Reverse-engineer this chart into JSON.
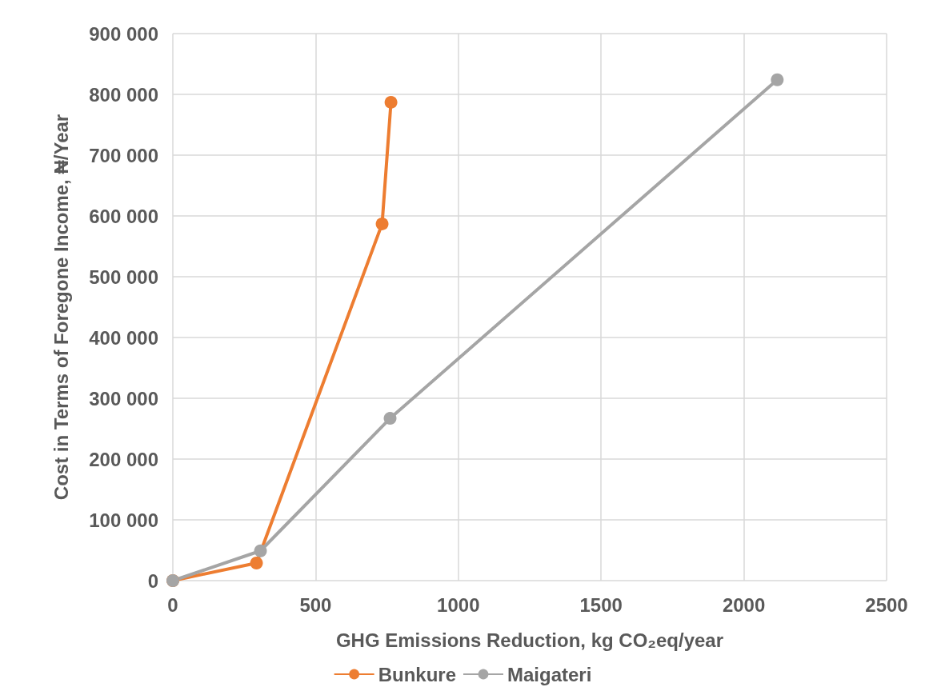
{
  "chart_data": {
    "type": "line",
    "xlabel": "GHG Emissions Reduction, kg CO₂eq/year",
    "ylabel": "Cost in Terms of Foregone Income, ₦/Year",
    "series": [
      {
        "name": "Bunkure",
        "color": "#ed7d31",
        "x": [
          0,
          293,
          733,
          764
        ],
        "values": [
          0,
          29000,
          587000,
          787000
        ]
      },
      {
        "name": "Maigateri",
        "color": "#a5a5a5",
        "x": [
          0,
          307,
          761,
          2117
        ],
        "values": [
          0,
          49000,
          267000,
          824000
        ]
      }
    ],
    "xlim": [
      0,
      2500
    ],
    "xticks": [
      0,
      500,
      1000,
      1500,
      2000,
      2500
    ],
    "ylim": [
      0,
      900000
    ],
    "yticks": [
      0,
      {
        "value": 100000,
        "label": "100 000"
      },
      {
        "value": 200000,
        "label": "200 000"
      },
      {
        "value": 300000,
        "label": "300 000"
      },
      {
        "value": 400000,
        "label": "400 000"
      },
      {
        "value": 500000,
        "label": "500 000"
      },
      {
        "value": 600000,
        "label": "600 000"
      },
      {
        "value": 700000,
        "label": "700 000"
      },
      {
        "value": 800000,
        "label": "800 000"
      },
      {
        "value": 900000,
        "label": "900 000"
      }
    ],
    "grid": true,
    "legend": "bottom",
    "marker": "circle",
    "line_style": "solid"
  }
}
